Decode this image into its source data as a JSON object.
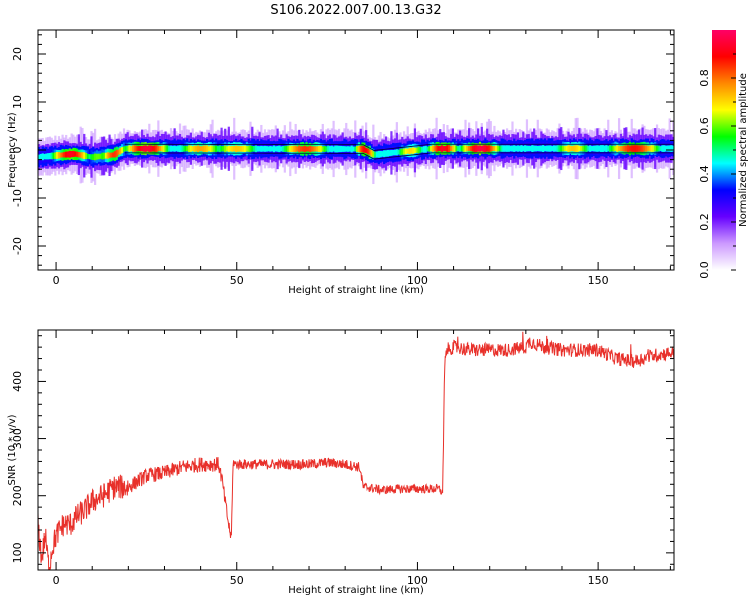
{
  "figure": {
    "title": "S106.2022.007.00.13.G32"
  },
  "chart_data": [
    {
      "type": "heatmap",
      "xlabel": "Height of straight line (km)",
      "ylabel": "Frequency (Hz)",
      "xlim": [
        -5,
        171
      ],
      "ylim": [
        -25,
        25
      ],
      "xticks": [
        0,
        50,
        100,
        150
      ],
      "yticks": [
        -20,
        -10,
        0,
        10,
        20
      ],
      "colorbar": {
        "label": "Normalized spectral amplitude",
        "range": [
          0,
          1
        ],
        "ticks": [
          "0.0",
          "0.2",
          "0.4",
          "0.6",
          "0.8"
        ],
        "colors": [
          "#ffffff",
          "#cc99ff",
          "#6600ff",
          "#0000ff",
          "#00ffff",
          "#00ff00",
          "#ffff00",
          "#ff8800",
          "#ff0000",
          "#ff0066"
        ]
      },
      "band": {
        "center": [
          [
            -5,
            -1.5
          ],
          [
            5,
            -0.8
          ],
          [
            10,
            -1.5
          ],
          [
            16,
            -1.0
          ],
          [
            19,
            0.3
          ],
          [
            85,
            0.2
          ],
          [
            88,
            -1.0
          ],
          [
            94,
            -0.5
          ],
          [
            104,
            0.3
          ],
          [
            170,
            0.3
          ]
        ],
        "hotspots": [
          {
            "x": [
              0,
              8
            ],
            "value": 0.92
          },
          {
            "x": [
              10,
              13
            ],
            "value": 0.6
          },
          {
            "x": [
              14,
              18
            ],
            "value": 0.85
          },
          {
            "x": [
              20,
              30
            ],
            "value": 0.95
          },
          {
            "x": [
              36,
              44
            ],
            "value": 0.75
          },
          {
            "x": [
              46,
              54
            ],
            "value": 0.72
          },
          {
            "x": [
              64,
              74
            ],
            "value": 0.85
          },
          {
            "x": [
              84,
              87
            ],
            "value": 0.9
          },
          {
            "x": [
              96,
              100
            ],
            "value": 0.7
          },
          {
            "x": [
              104,
              110
            ],
            "value": 0.93
          },
          {
            "x": [
              113,
              122
            ],
            "value": 0.96
          },
          {
            "x": [
              140,
              146
            ],
            "value": 0.72
          },
          {
            "x": [
              154,
              166
            ],
            "value": 0.88
          }
        ]
      }
    },
    {
      "type": "line",
      "xlabel": "Height of straight line (km)",
      "ylabel": "SNR (10 * v/v)",
      "xlim": [
        -5,
        171
      ],
      "ylim": [
        70,
        490
      ],
      "xticks": [
        0,
        50,
        100,
        150
      ],
      "yticks": [
        100,
        200,
        300,
        400
      ],
      "color": "#e8302a",
      "series": [
        {
          "x": [
            -5,
            -4,
            -3,
            -2,
            -1,
            0,
            2,
            4,
            6,
            8,
            10,
            13,
            16,
            20,
            25,
            30,
            35,
            40,
            45,
            46,
            47,
            48,
            48.5,
            49,
            49.5,
            50,
            55,
            60,
            65,
            70,
            75,
            80,
            84,
            85,
            86,
            90,
            95,
            100,
            106,
            107,
            107.5,
            108,
            110,
            115,
            120,
            125,
            130,
            131,
            135,
            140,
            145,
            150,
            155,
            160,
            165,
            170
          ],
          "y": [
            150,
            90,
            130,
            75,
            110,
            130,
            150,
            150,
            165,
            175,
            190,
            200,
            215,
            215,
            235,
            240,
            250,
            255,
            255,
            225,
            180,
            140,
            125,
            260,
            255,
            255,
            255,
            255,
            255,
            255,
            258,
            255,
            250,
            215,
            215,
            210,
            212,
            212,
            212,
            205,
            420,
            455,
            460,
            455,
            455,
            455,
            460,
            470,
            460,
            455,
            455,
            455,
            440,
            435,
            445,
            450
          ]
        }
      ]
    }
  ]
}
